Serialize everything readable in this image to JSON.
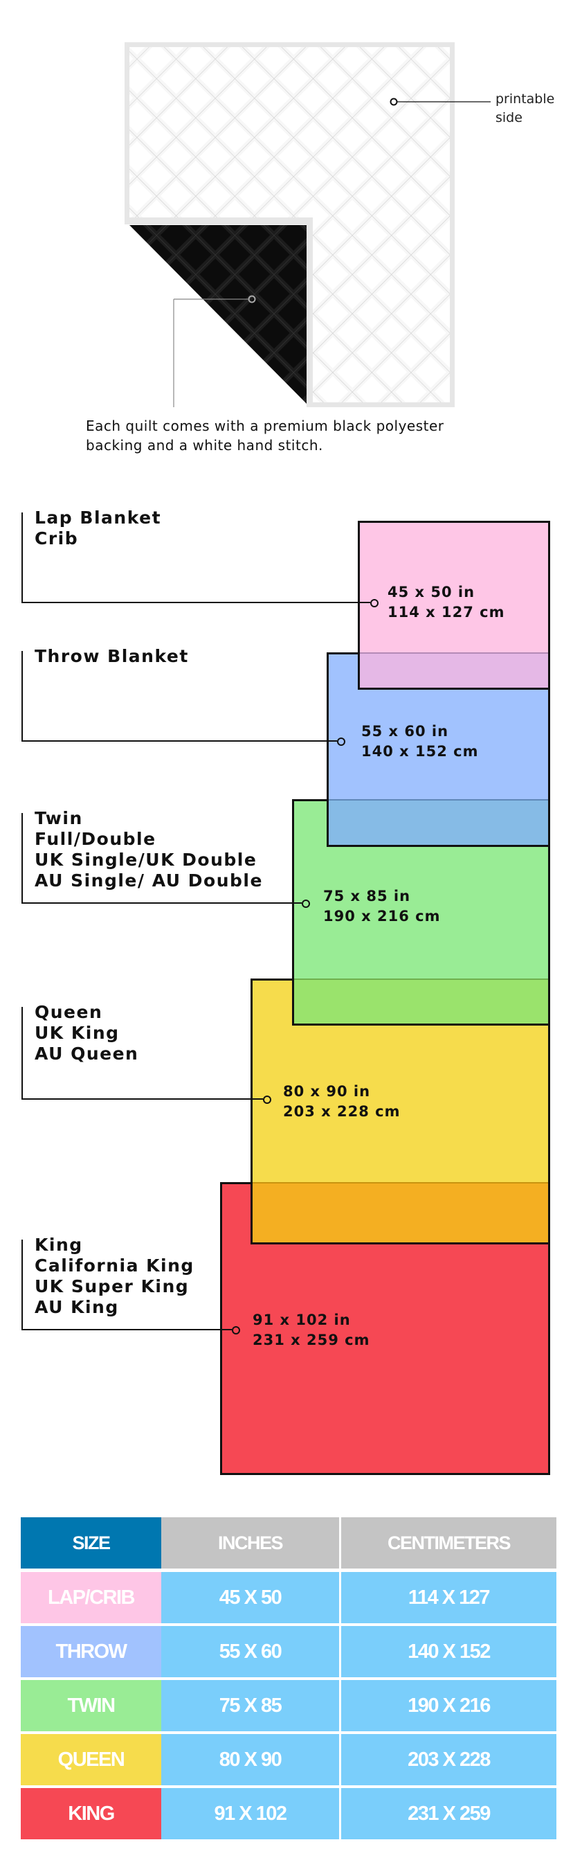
{
  "quilt": {
    "front_callout": [
      "printable",
      "side"
    ],
    "caption": [
      "Each quilt comes with a premium black polyester",
      "backing and a white hand stitch."
    ],
    "colors": {
      "front": "#ffffff",
      "backing": "#111111",
      "stitch": "#e4e4e4"
    }
  },
  "sizes": [
    {
      "labels": [
        "Lap Blanket",
        "Crib"
      ],
      "inches": "45 x 50 in",
      "cm": "114 x 127 cm",
      "color": "#FEC6E6"
    },
    {
      "labels": [
        "Throw Blanket"
      ],
      "inches": "55 x 60 in",
      "cm": "140 x 152 cm",
      "color": "#A1C2FE"
    },
    {
      "labels": [
        "Twin",
        "Full/Double",
        "UK Single/UK Double",
        "AU Single/ AU Double"
      ],
      "inches": "75 x 85 in",
      "cm": "190 x 216 cm",
      "color": "#99EC95"
    },
    {
      "labels": [
        "Queen",
        "UK King",
        "AU Queen"
      ],
      "inches": "80 x 90 in",
      "cm": "203 x 228 cm",
      "color": "#F6DC4C"
    },
    {
      "labels": [
        "King",
        "California King",
        "UK Super King",
        "AU King"
      ],
      "inches": "91 x 102 in",
      "cm": "231 x 259 cm",
      "color": "#F64854"
    }
  ],
  "overlap_colors": [
    "#E5B8E6",
    "#86BBE6",
    "#9AE36C",
    "#F4AF22"
  ],
  "table": {
    "headers": [
      "SIZE",
      "INCHES",
      "CENTIMETERS"
    ],
    "header_colors": [
      "#0077B0",
      "#C4C4C4",
      "#C4C4C4"
    ],
    "value_cell_color": "#7ACEFB",
    "rows": [
      {
        "size": "LAP/CRIB",
        "inches": "45 X 50",
        "cm": "114 X 127",
        "color": "#FEC6E6"
      },
      {
        "size": "THROW",
        "inches": "55 X 60",
        "cm": "140 X 152",
        "color": "#A1C2FE"
      },
      {
        "size": "TWIN",
        "inches": "75 X 85",
        "cm": "190 X 216",
        "color": "#99EC95"
      },
      {
        "size": "QUEEN",
        "inches": "80 X 90",
        "cm": "203 X 228",
        "color": "#F6DC4C"
      },
      {
        "size": "KING",
        "inches": "91 X 102",
        "cm": "231 X 259",
        "color": "#F64854"
      }
    ]
  }
}
